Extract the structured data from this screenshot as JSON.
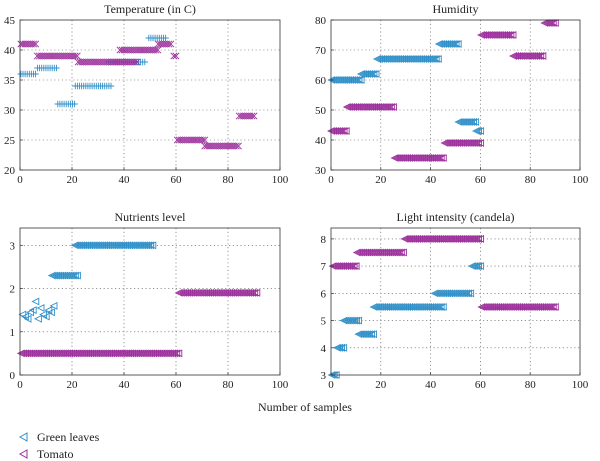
{
  "colors": {
    "green_leaves": "#2f8fc8",
    "tomato": "#9b2e9b"
  },
  "icons": {
    "green_leaves": "left-triangle-marker",
    "tomato": "left-triangle-marker"
  },
  "xlabel": "Number of samples",
  "legend": {
    "placement": "bottom-left",
    "entries": [
      {
        "label": "Green leaves",
        "color": "#2f8fc8"
      },
      {
        "label": "Tomato",
        "color": "#9b2e9b"
      }
    ]
  },
  "chart_data": [
    {
      "type": "scatter",
      "title": "Temperature (in C)",
      "xlim": [
        0,
        100
      ],
      "ylim": [
        20,
        45
      ],
      "xticks": [
        0,
        20,
        40,
        60,
        80,
        100
      ],
      "yticks": [
        20,
        25,
        30,
        35,
        40,
        45
      ],
      "grid": true,
      "series": [
        {
          "name": "Green leaves",
          "color": "#2f8fc8",
          "marker": "plus",
          "segments": [
            {
              "x": [
                0,
                6
              ],
              "y": 36
            },
            {
              "x": [
                6,
                14
              ],
              "y": 37
            },
            {
              "x": [
                14,
                21
              ],
              "y": 31
            },
            {
              "x": [
                21,
                35
              ],
              "y": 34
            },
            {
              "x": [
                34,
                48
              ],
              "y": 38
            },
            {
              "x": [
                49,
                56
              ],
              "y": 42
            }
          ]
        },
        {
          "name": "Tomato",
          "color": "#9b2e9b",
          "marker": "cross",
          "segments": [
            {
              "x": [
                0,
                6
              ],
              "y": 41
            },
            {
              "x": [
                6,
                22
              ],
              "y": 39
            },
            {
              "x": [
                22,
                45
              ],
              "y": 38
            },
            {
              "x": [
                38,
                53
              ],
              "y": 40
            },
            {
              "x": [
                53,
                58
              ],
              "y": 41
            },
            {
              "x": [
                59,
                60
              ],
              "y": 39
            },
            {
              "x": [
                60,
                71
              ],
              "y": 25
            },
            {
              "x": [
                71,
                84
              ],
              "y": 24
            },
            {
              "x": [
                84,
                90
              ],
              "y": 29
            }
          ]
        }
      ]
    },
    {
      "type": "scatter",
      "title": "Humidity",
      "xlim": [
        0,
        100
      ],
      "ylim": [
        30,
        80
      ],
      "xticks": [
        0,
        20,
        40,
        60,
        80,
        100
      ],
      "yticks": [
        30,
        40,
        50,
        60,
        70,
        80
      ],
      "grid": true,
      "series": [
        {
          "name": "Green leaves",
          "color": "#2f8fc8",
          "marker": "left-triangle",
          "segments": [
            {
              "x": [
                0,
                12
              ],
              "y": 60
            },
            {
              "x": [
                12,
                18
              ],
              "y": 62
            },
            {
              "x": [
                18,
                43
              ],
              "y": 67
            },
            {
              "x": [
                43,
                51
              ],
              "y": 72
            },
            {
              "x": [
                51,
                58
              ],
              "y": 46
            },
            {
              "x": [
                58,
                60
              ],
              "y": 43
            }
          ]
        },
        {
          "name": "Tomato",
          "color": "#9b2e9b",
          "marker": "left-triangle",
          "segments": [
            {
              "x": [
                0,
                6
              ],
              "y": 43
            },
            {
              "x": [
                6,
                25
              ],
              "y": 51
            },
            {
              "x": [
                25,
                45
              ],
              "y": 34
            },
            {
              "x": [
                45,
                60
              ],
              "y": 39
            },
            {
              "x": [
                60,
                73
              ],
              "y": 75
            },
            {
              "x": [
                73,
                85
              ],
              "y": 68
            },
            {
              "x": [
                85,
                90
              ],
              "y": 79
            }
          ]
        }
      ]
    },
    {
      "type": "scatter",
      "title": "Nutrients level",
      "xlim": [
        0,
        100
      ],
      "ylim": [
        0,
        3.4
      ],
      "xticks": [
        0,
        20,
        40,
        60,
        80,
        100
      ],
      "yticks": [
        0,
        1,
        2,
        3
      ],
      "grid": true,
      "series": [
        {
          "name": "Green leaves",
          "color": "#2f8fc8",
          "marker": "left-triangle",
          "segments": [
            {
              "x": [
                12,
                22
              ],
              "y": 2.3
            },
            {
              "x": [
                21,
                51
              ],
              "y": 3.0
            }
          ],
          "points": [
            [
              1,
              1.4
            ],
            [
              2,
              1.35
            ],
            [
              3,
              1.3
            ],
            [
              4,
              1.45
            ],
            [
              5,
              1.5
            ],
            [
              6,
              1.7
            ],
            [
              7,
              1.3
            ],
            [
              8,
              1.55
            ],
            [
              9,
              1.4
            ],
            [
              10,
              1.35
            ],
            [
              11,
              1.5
            ],
            [
              12,
              1.45
            ],
            [
              13,
              1.6
            ]
          ]
        },
        {
          "name": "Tomato",
          "color": "#9b2e9b",
          "marker": "left-triangle",
          "segments": [
            {
              "x": [
                0,
                61
              ],
              "y": 0.5
            },
            {
              "x": [
                61,
                91
              ],
              "y": 1.9
            }
          ]
        }
      ]
    },
    {
      "type": "scatter",
      "title": "Light intensity (candela)",
      "xlim": [
        0,
        100
      ],
      "ylim": [
        3,
        8.4
      ],
      "xticks": [
        0,
        20,
        40,
        60,
        80,
        100
      ],
      "yticks": [
        3,
        4,
        5,
        6,
        7,
        8
      ],
      "grid": true,
      "series": [
        {
          "name": "Green leaves",
          "color": "#2f8fc8",
          "marker": "left-triangle",
          "segments": [
            {
              "x": [
                0,
                2
              ],
              "y": 3
            },
            {
              "x": [
                2,
                5
              ],
              "y": 4
            },
            {
              "x": [
                5,
                11
              ],
              "y": 5
            },
            {
              "x": [
                11,
                17
              ],
              "y": 4.5
            },
            {
              "x": [
                17,
                45
              ],
              "y": 5.5
            },
            {
              "x": [
                41,
                56
              ],
              "y": 6
            },
            {
              "x": [
                56,
                60
              ],
              "y": 7
            }
          ]
        },
        {
          "name": "Tomato",
          "color": "#9b2e9b",
          "marker": "left-triangle",
          "segments": [
            {
              "x": [
                0,
                10
              ],
              "y": 7
            },
            {
              "x": [
                10,
                29
              ],
              "y": 7.5
            },
            {
              "x": [
                29,
                60
              ],
              "y": 8
            },
            {
              "x": [
                60,
                90
              ],
              "y": 5.5
            }
          ]
        }
      ]
    }
  ]
}
